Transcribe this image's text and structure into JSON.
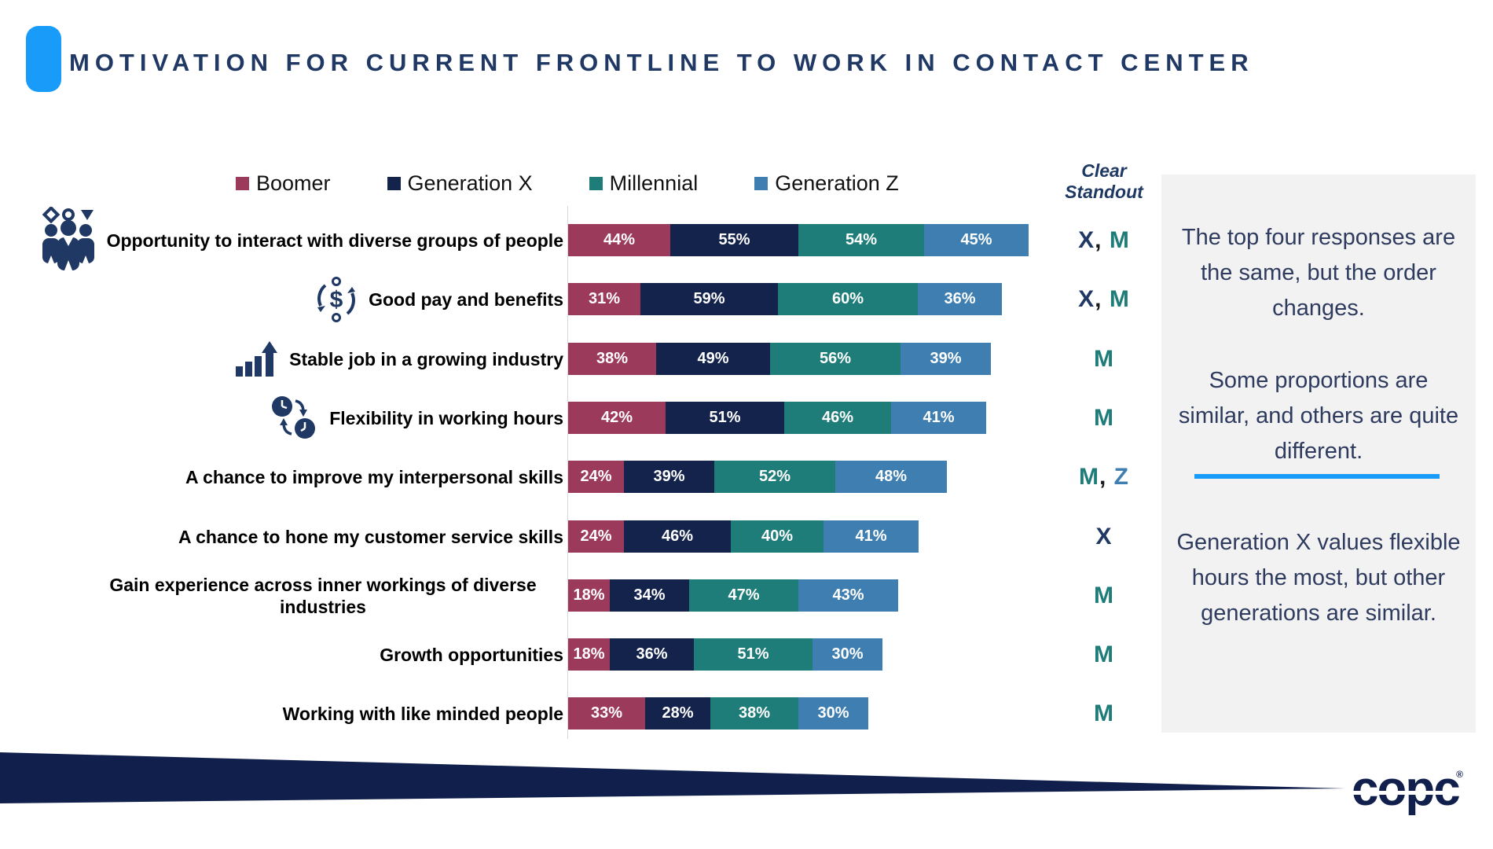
{
  "page_title": "MOTIVATION FOR CURRENT FRONTLINE TO WORK IN CONTACT CENTER",
  "standout_header": {
    "line1": "Clear",
    "line2": "Standout"
  },
  "legend": [
    {
      "label": "Boomer",
      "color": "#9C3A5B"
    },
    {
      "label": "Generation X",
      "color": "#13234B"
    },
    {
      "label": "Millennial",
      "color": "#1E7C79"
    },
    {
      "label": "Generation Z",
      "color": "#3E7EB0"
    }
  ],
  "standout_colors": {
    "X": "#1F3864",
    "M": "#1E7C79",
    "Z": "#3E7EB0"
  },
  "chart_data": {
    "type": "bar",
    "variant": "horizontal-stacked",
    "unit": "percent",
    "legend_position": "top",
    "series": [
      "Boomer",
      "Generation X",
      "Millennial",
      "Generation Z"
    ],
    "categories": [
      "Opportunity to interact with diverse groups of people",
      "Good pay and benefits",
      "Stable job in a growing industry",
      "Flexibility in working hours",
      "A chance to improve my interpersonal skills",
      "A chance to hone my customer service skills",
      "Gain experience across inner workings of diverse industries",
      "Growth opportunities",
      "Working with like minded people"
    ],
    "rows": [
      {
        "label": "Opportunity to interact with diverse groups of people",
        "icon": "people-group-icon",
        "values": [
          44,
          55,
          54,
          45
        ],
        "standout": [
          "X",
          "M"
        ]
      },
      {
        "label": "Good pay and benefits",
        "icon": "money-cycle-icon",
        "values": [
          31,
          59,
          60,
          36
        ],
        "standout": [
          "X",
          "M"
        ]
      },
      {
        "label": "Stable job in a growing industry",
        "icon": "growth-chart-icon",
        "values": [
          38,
          49,
          56,
          39
        ],
        "standout": [
          "M"
        ]
      },
      {
        "label": "Flexibility in working hours",
        "icon": "flex-clocks-icon",
        "values": [
          42,
          51,
          46,
          41
        ],
        "standout": [
          "M"
        ]
      },
      {
        "label": "A chance to improve my interpersonal skills",
        "icon": null,
        "values": [
          24,
          39,
          52,
          48
        ],
        "standout": [
          "M",
          "Z"
        ]
      },
      {
        "label": "A chance to hone my customer service skills",
        "icon": null,
        "values": [
          24,
          46,
          40,
          41
        ],
        "standout": [
          "X"
        ]
      },
      {
        "label": "Gain experience across inner workings of diverse industries",
        "icon": null,
        "values": [
          18,
          34,
          47,
          43
        ],
        "standout": [
          "M"
        ]
      },
      {
        "label": "Growth opportunities",
        "icon": null,
        "values": [
          18,
          36,
          51,
          30
        ],
        "standout": [
          "M"
        ]
      },
      {
        "label": "Working with like minded people",
        "icon": null,
        "values": [
          33,
          28,
          38,
          30
        ],
        "standout": [
          "M"
        ]
      }
    ]
  },
  "notes": {
    "note1": "The top four responses are the same, but the order changes.",
    "note2": "Some proportions are similar, and others are quite different.",
    "note3": "Generation X values flexible hours the most, but other generations are similar."
  },
  "logo": {
    "text": "copc",
    "reg": "®"
  },
  "colors": {
    "accent_blue": "#199BF9",
    "title_navy": "#1F3864",
    "panel_bg": "#F2F2F2",
    "panel_text": "#2E3B5F",
    "footer_navy": "#101F4C",
    "bar_value_text": "#FFFFFF"
  }
}
